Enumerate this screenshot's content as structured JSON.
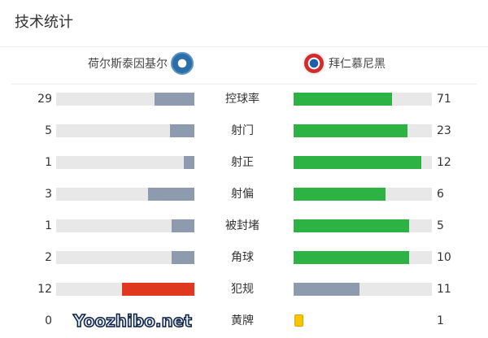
{
  "title": "技术统计",
  "home": {
    "name": "荷尔斯泰因基尔",
    "crest": "holstein-kiel-crest"
  },
  "away": {
    "name": "拜仁慕尼黑",
    "crest": "bayern-munich-crest"
  },
  "colors": {
    "home_bar": "#8e9aae",
    "away_bar": "#2db343",
    "track": "#e8e8e8",
    "highlight_red": "#e0371f",
    "yellow_card": "#f7c600"
  },
  "stats": [
    {
      "label": "控球率",
      "home": "29",
      "away": "71"
    },
    {
      "label": "射门",
      "home": "5",
      "away": "23"
    },
    {
      "label": "射正",
      "home": "1",
      "away": "12"
    },
    {
      "label": "射偏",
      "home": "3",
      "away": "6"
    },
    {
      "label": "被封堵",
      "home": "1",
      "away": "5"
    },
    {
      "label": "角球",
      "home": "2",
      "away": "10"
    },
    {
      "label": "犯规",
      "home": "12",
      "away": "11"
    },
    {
      "label": "黄牌",
      "home": "0",
      "away": "1"
    }
  ],
  "watermark": "Yoozhibo.net"
}
